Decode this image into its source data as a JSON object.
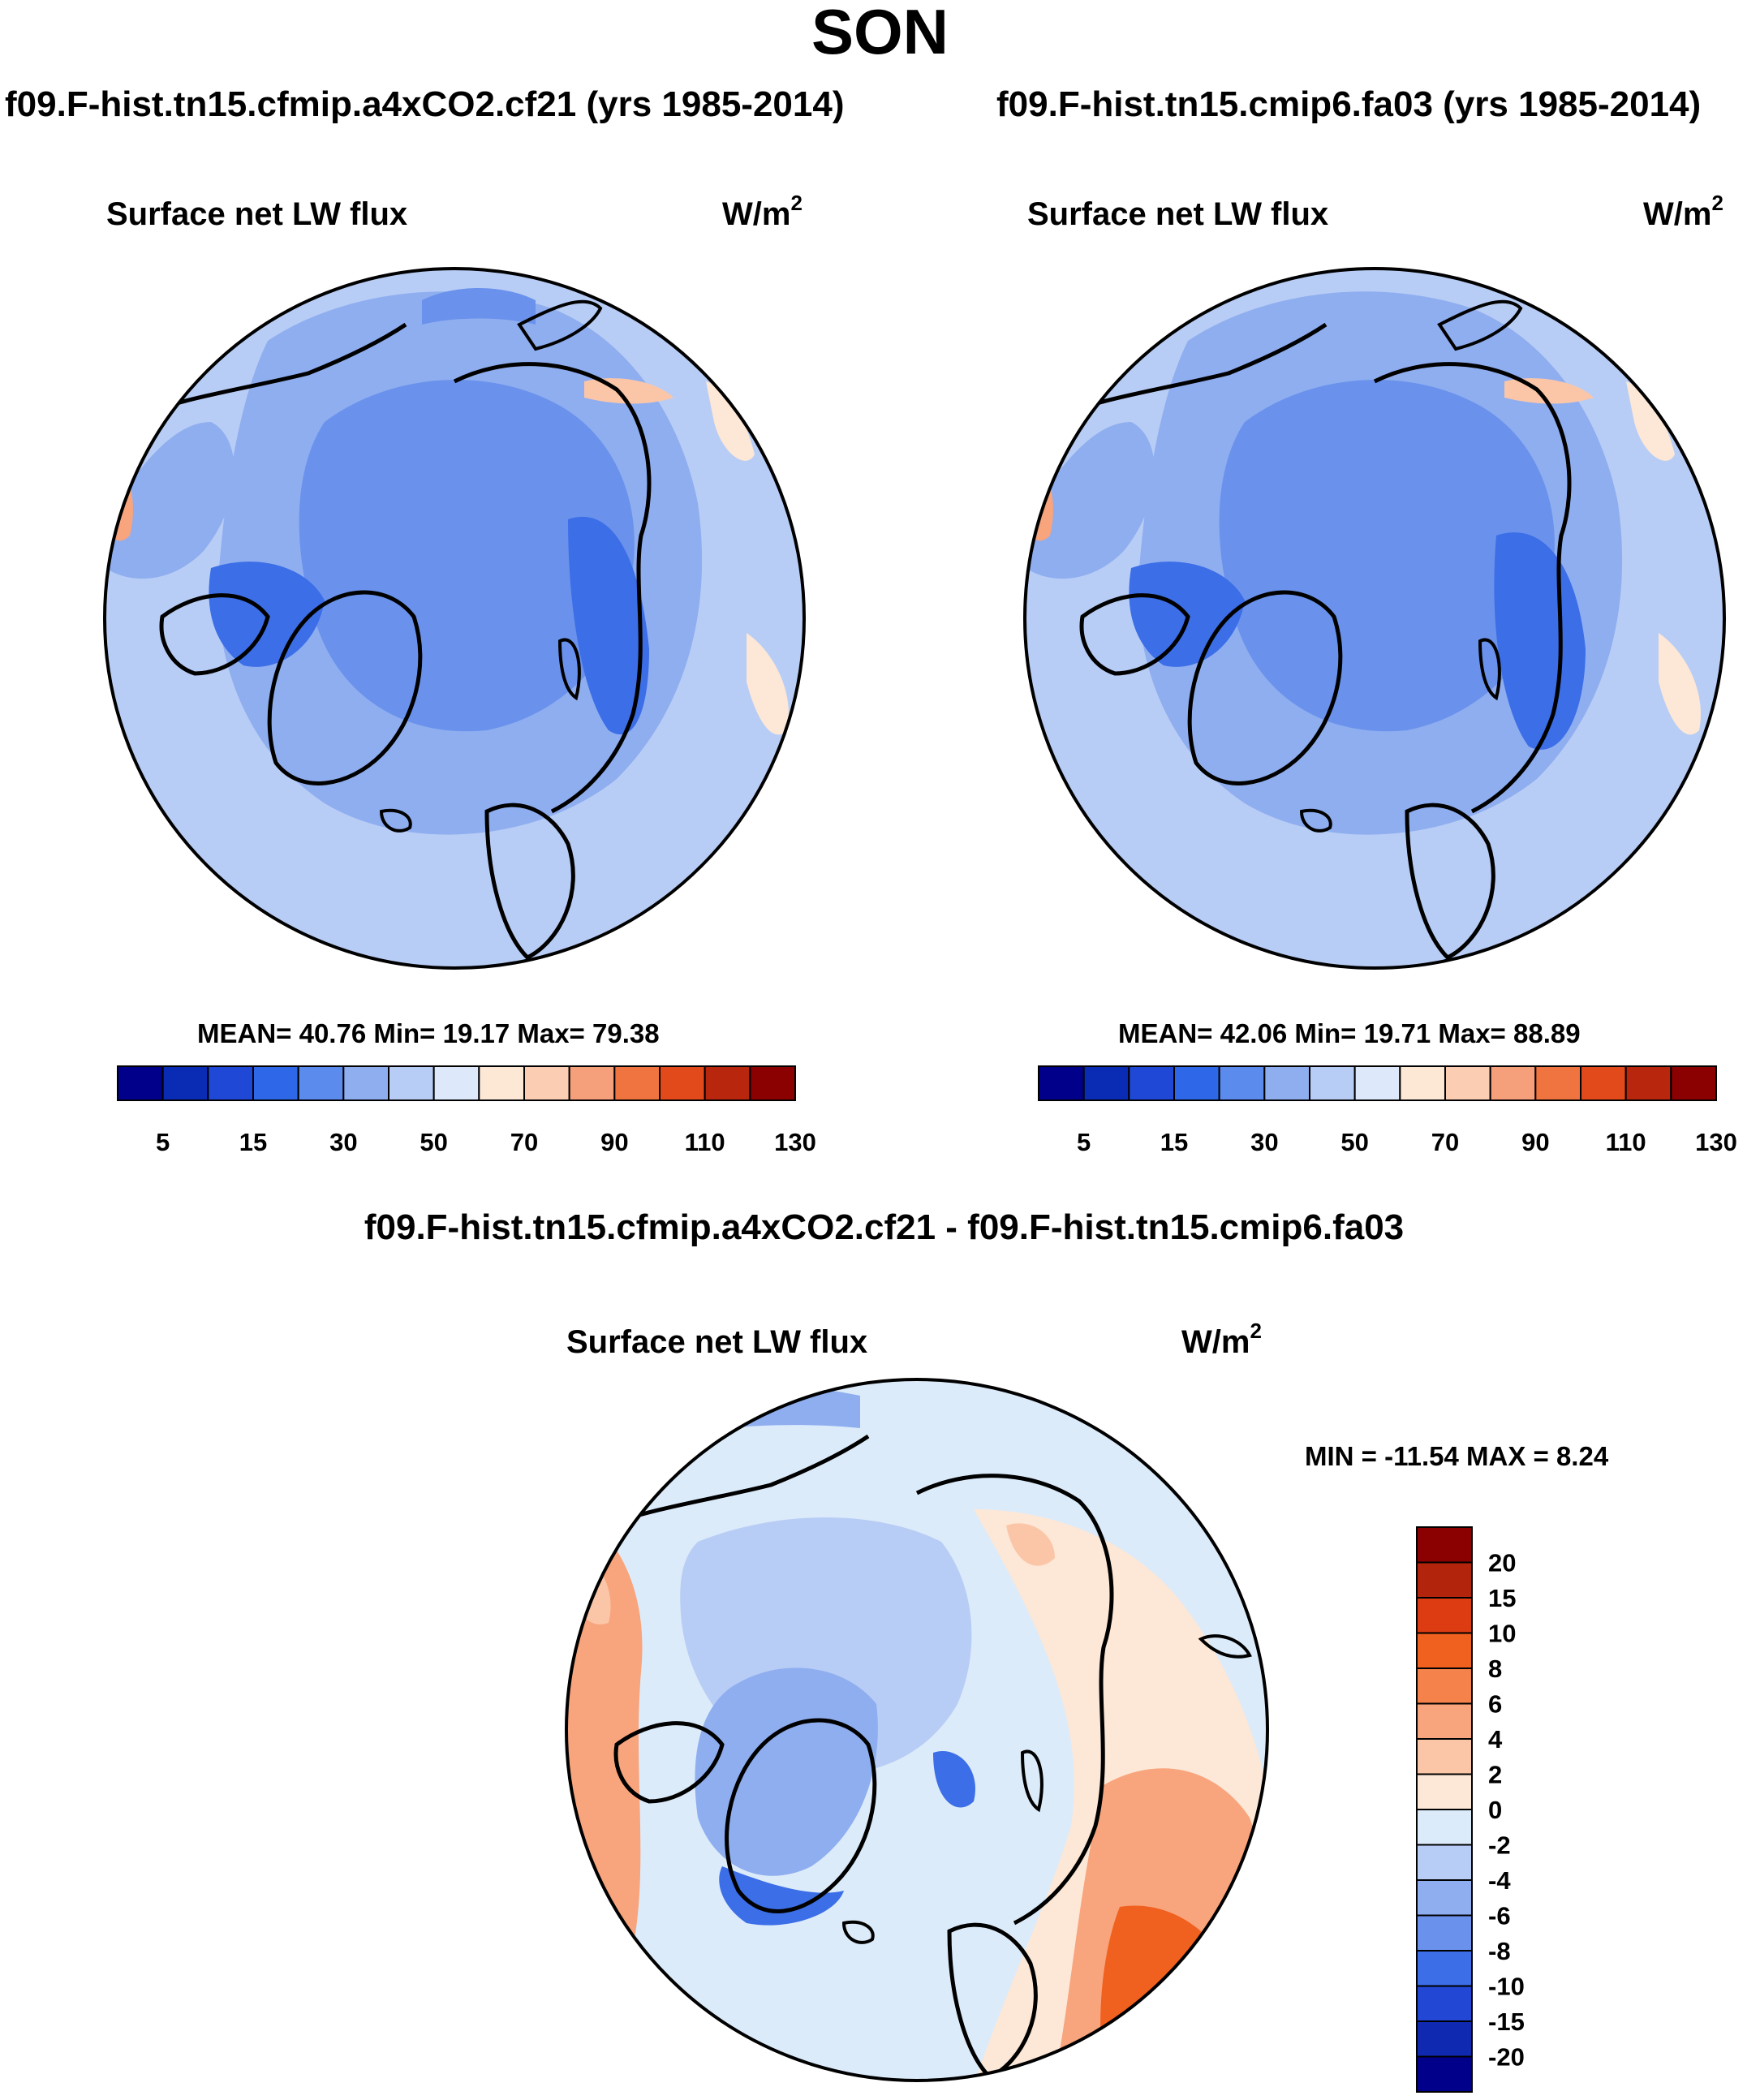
{
  "figure": {
    "season": "SON",
    "diff_title": "f09.F-hist.tn15.cfmip.a4xCO2.cf21 - f09.F-hist.tn15.cmip6.fa03"
  },
  "panels": {
    "left": {
      "run_title": "f09.F-hist.tn15.cfmip.a4xCO2.cf21 (yrs 1985-2014)",
      "var_title": "Surface net LW flux",
      "units_base": "W/m",
      "units_exp": "2",
      "stats": "MEAN=  40.76  Min=  19.17  Max=  79.38"
    },
    "right": {
      "run_title": "f09.F-hist.tn15.cmip6.fa03 (yrs 1985-2014)",
      "var_title": "Surface net LW flux",
      "units_base": "W/m",
      "units_exp": "2",
      "stats": "MEAN=  42.06  Min=  19.71  Max=  88.89"
    },
    "diff": {
      "var_title": "Surface net LW flux",
      "units_base": "W/m",
      "units_exp": "2",
      "stats": "MIN = -11.54 MAX =   8.24"
    }
  },
  "chart_data": [
    {
      "type": "heatmap",
      "title": "Surface net LW flux",
      "subtitle": "f09.F-hist.tn15.cfmip.a4xCO2.cf21 (yrs 1985-2014)",
      "units": "W/m^2",
      "projection": "polar stereographic (north)",
      "mean": 40.76,
      "min": 19.17,
      "max": 79.38,
      "colorbar": {
        "orientation": "horizontal",
        "tick_labels": [
          "5",
          "15",
          "30",
          "50",
          "70",
          "90",
          "110",
          "130"
        ],
        "colors": [
          "#00008b",
          "#0a2bb4",
          "#1f48d6",
          "#2e68e8",
          "#5b8bed",
          "#8faef0",
          "#b8cdf5",
          "#dde9fa",
          "#fde8d6",
          "#fbcdb3",
          "#f5a07a",
          "#f0743f",
          "#e24a1c",
          "#b9260e",
          "#8b0000"
        ]
      }
    },
    {
      "type": "heatmap",
      "title": "Surface net LW flux",
      "subtitle": "f09.F-hist.tn15.cmip6.fa03 (yrs 1985-2014)",
      "units": "W/m^2",
      "projection": "polar stereographic (north)",
      "mean": 42.06,
      "min": 19.71,
      "max": 88.89,
      "colorbar": {
        "orientation": "horizontal",
        "tick_labels": [
          "5",
          "15",
          "30",
          "50",
          "70",
          "90",
          "110",
          "130"
        ],
        "colors": [
          "#00008b",
          "#0a2bb4",
          "#1f48d6",
          "#2e68e8",
          "#5b8bed",
          "#8faef0",
          "#b8cdf5",
          "#dde9fa",
          "#fde8d6",
          "#fbcdb3",
          "#f5a07a",
          "#f0743f",
          "#e24a1c",
          "#b9260e",
          "#8b0000"
        ]
      }
    },
    {
      "type": "heatmap",
      "title": "Surface net LW flux",
      "subtitle": "f09.F-hist.tn15.cfmip.a4xCO2.cf21 - f09.F-hist.tn15.cmip6.fa03",
      "units": "W/m^2",
      "projection": "polar stereographic (north)",
      "min": -11.54,
      "max": 8.24,
      "colorbar": {
        "orientation": "vertical",
        "tick_labels": [
          "20",
          "15",
          "10",
          "8",
          "6",
          "4",
          "2",
          "0",
          "-2",
          "-4",
          "-6",
          "-8",
          "-10",
          "-15",
          "-20"
        ],
        "colors": [
          "#8b0000",
          "#b3240c",
          "#dd3c12",
          "#f0601f",
          "#f5824a",
          "#f8a47c",
          "#fbc6a8",
          "#fde7d6",
          "#dcebfa",
          "#b8cdf5",
          "#8faef0",
          "#6a92ec",
          "#3b6ee7",
          "#2147d4",
          "#0f2ab0",
          "#00008b"
        ]
      }
    }
  ]
}
